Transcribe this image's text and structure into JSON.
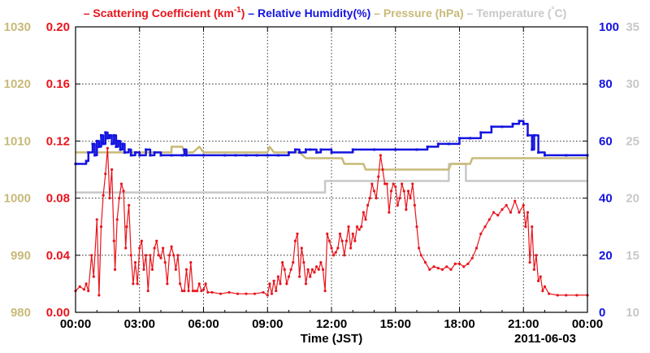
{
  "chart_data": {
    "type": "line",
    "xlabel": "Time (JST)",
    "date_label": "2011-06-03",
    "x_ticks": [
      "00:00",
      "03:00",
      "06:00",
      "09:00",
      "12:00",
      "15:00",
      "18:00",
      "21:00",
      "00:00"
    ],
    "grid": true,
    "legend_position": "top",
    "colors": {
      "scattering": "#e8141c",
      "humidity": "#1414e0",
      "pressure": "#c8ba78",
      "temperature": "#c8c8c8"
    },
    "legend": [
      {
        "key": "scattering",
        "dash": "–",
        "text_pre": "Scattering Coefficient (km",
        "sup": "-1",
        "text_post": ")"
      },
      {
        "key": "humidity",
        "dash": "–",
        "text_pre": "Relative Humidity(%)",
        "sup": "",
        "text_post": ""
      },
      {
        "key": "pressure",
        "dash": "–",
        "text_pre": "Pressure (hPa)",
        "sup": "",
        "text_post": ""
      },
      {
        "key": "temperature",
        "dash": "–",
        "text_pre": "Temperature (",
        "sup": "°",
        "text_post": "C)"
      }
    ],
    "axes": {
      "scattering": {
        "range": [
          0,
          0.2
        ],
        "ticks": [
          "0.00",
          "0.04",
          "0.08",
          "0.12",
          "0.16",
          "0.20"
        ]
      },
      "pressure": {
        "range": [
          980,
          1030
        ],
        "ticks": [
          "980",
          "990",
          "1000",
          "1010",
          "1020",
          "1030"
        ]
      },
      "humidity": {
        "range": [
          0,
          100
        ],
        "ticks": [
          "0",
          "20",
          "40",
          "60",
          "80",
          "100"
        ]
      },
      "temperature": {
        "range": [
          10,
          35
        ],
        "ticks": [
          "10",
          "15",
          "20",
          "25",
          "30",
          "35"
        ]
      }
    },
    "series": {
      "scattering": [
        [
          0.0,
          0.015
        ],
        [
          0.2,
          0.018
        ],
        [
          0.4,
          0.016
        ],
        [
          0.5,
          0.02
        ],
        [
          0.6,
          0.015
        ],
        [
          0.75,
          0.04
        ],
        [
          0.85,
          0.025
        ],
        [
          1.0,
          0.065
        ],
        [
          1.1,
          0.012
        ],
        [
          1.2,
          0.06
        ],
        [
          1.3,
          0.082
        ],
        [
          1.4,
          0.097
        ],
        [
          1.5,
          0.115
        ],
        [
          1.6,
          0.08
        ],
        [
          1.7,
          0.1
        ],
        [
          1.8,
          0.05
        ],
        [
          1.85,
          0.03
        ],
        [
          1.95,
          0.065
        ],
        [
          2.05,
          0.08
        ],
        [
          2.15,
          0.09
        ],
        [
          2.25,
          0.085
        ],
        [
          2.35,
          0.045
        ],
        [
          2.4,
          0.06
        ],
        [
          2.5,
          0.075
        ],
        [
          2.6,
          0.04
        ],
        [
          2.7,
          0.02
        ],
        [
          2.8,
          0.035
        ],
        [
          2.9,
          0.02
        ],
        [
          3.0,
          0.045
        ],
        [
          3.1,
          0.05
        ],
        [
          3.2,
          0.03
        ],
        [
          3.3,
          0.04
        ],
        [
          3.4,
          0.015
        ],
        [
          3.5,
          0.04
        ],
        [
          3.6,
          0.03
        ],
        [
          3.7,
          0.045
        ],
        [
          3.8,
          0.05
        ],
        [
          3.9,
          0.04
        ],
        [
          4.0,
          0.038
        ],
        [
          4.1,
          0.045
        ],
        [
          4.2,
          0.035
        ],
        [
          4.3,
          0.02
        ],
        [
          4.4,
          0.04
        ],
        [
          4.5,
          0.046
        ],
        [
          4.6,
          0.04
        ],
        [
          4.7,
          0.03
        ],
        [
          4.8,
          0.04
        ],
        [
          4.9,
          0.02
        ],
        [
          5.0,
          0.015
        ],
        [
          5.1,
          0.015
        ],
        [
          5.2,
          0.03
        ],
        [
          5.3,
          0.015
        ],
        [
          5.4,
          0.035
        ],
        [
          5.5,
          0.015
        ],
        [
          5.6,
          0.015
        ],
        [
          5.7,
          0.015
        ],
        [
          5.8,
          0.02
        ],
        [
          5.9,
          0.015
        ],
        [
          6.0,
          0.016
        ],
        [
          6.1,
          0.02
        ],
        [
          6.2,
          0.014
        ],
        [
          6.4,
          0.014
        ],
        [
          6.8,
          0.013
        ],
        [
          7.2,
          0.014
        ],
        [
          7.6,
          0.013
        ],
        [
          8.0,
          0.013
        ],
        [
          8.4,
          0.013
        ],
        [
          8.8,
          0.014
        ],
        [
          9.0,
          0.012
        ],
        [
          9.1,
          0.02
        ],
        [
          9.2,
          0.013
        ],
        [
          9.3,
          0.022
        ],
        [
          9.4,
          0.015
        ],
        [
          9.5,
          0.025
        ],
        [
          9.6,
          0.02
        ],
        [
          9.7,
          0.035
        ],
        [
          9.8,
          0.03
        ],
        [
          9.9,
          0.02
        ],
        [
          10.0,
          0.025
        ],
        [
          10.1,
          0.03
        ],
        [
          10.2,
          0.035
        ],
        [
          10.3,
          0.05
        ],
        [
          10.4,
          0.055
        ],
        [
          10.5,
          0.025
        ],
        [
          10.6,
          0.045
        ],
        [
          10.7,
          0.035
        ],
        [
          10.8,
          0.02
        ],
        [
          10.9,
          0.03
        ],
        [
          11.0,
          0.025
        ],
        [
          11.1,
          0.03
        ],
        [
          11.2,
          0.028
        ],
        [
          11.3,
          0.032
        ],
        [
          11.4,
          0.03
        ],
        [
          11.5,
          0.035
        ],
        [
          11.6,
          0.03
        ],
        [
          11.7,
          0.015
        ],
        [
          11.8,
          0.055
        ],
        [
          11.9,
          0.05
        ],
        [
          12.0,
          0.045
        ],
        [
          12.1,
          0.04
        ],
        [
          12.2,
          0.042
        ],
        [
          12.3,
          0.045
        ],
        [
          12.4,
          0.055
        ],
        [
          12.5,
          0.05
        ],
        [
          12.6,
          0.04
        ],
        [
          12.7,
          0.05
        ],
        [
          12.8,
          0.06
        ],
        [
          12.9,
          0.045
        ],
        [
          13.0,
          0.055
        ],
        [
          13.1,
          0.05
        ],
        [
          13.2,
          0.06
        ],
        [
          13.3,
          0.058
        ],
        [
          13.4,
          0.06
        ],
        [
          13.5,
          0.07
        ],
        [
          13.6,
          0.065
        ],
        [
          13.7,
          0.075
        ],
        [
          13.8,
          0.08
        ],
        [
          13.9,
          0.09
        ],
        [
          14.0,
          0.085
        ],
        [
          14.1,
          0.08
        ],
        [
          14.2,
          0.095
        ],
        [
          14.3,
          0.11
        ],
        [
          14.4,
          0.1
        ],
        [
          14.5,
          0.09
        ],
        [
          14.6,
          0.09
        ],
        [
          14.7,
          0.07
        ],
        [
          14.8,
          0.085
        ],
        [
          14.9,
          0.09
        ],
        [
          15.0,
          0.088
        ],
        [
          15.1,
          0.075
        ],
        [
          15.2,
          0.08
        ],
        [
          15.3,
          0.09
        ],
        [
          15.4,
          0.085
        ],
        [
          15.5,
          0.072
        ],
        [
          15.6,
          0.085
        ],
        [
          15.7,
          0.08
        ],
        [
          15.8,
          0.09
        ],
        [
          15.9,
          0.075
        ],
        [
          16.0,
          0.06
        ],
        [
          16.1,
          0.045
        ],
        [
          16.2,
          0.04
        ],
        [
          16.4,
          0.035
        ],
        [
          16.6,
          0.03
        ],
        [
          16.8,
          0.032
        ],
        [
          17.0,
          0.031
        ],
        [
          17.2,
          0.03
        ],
        [
          17.4,
          0.032
        ],
        [
          17.6,
          0.03
        ],
        [
          17.8,
          0.034
        ],
        [
          18.0,
          0.034
        ],
        [
          18.2,
          0.032
        ],
        [
          18.4,
          0.034
        ],
        [
          18.6,
          0.038
        ],
        [
          18.8,
          0.045
        ],
        [
          19.0,
          0.055
        ],
        [
          19.2,
          0.06
        ],
        [
          19.4,
          0.065
        ],
        [
          19.6,
          0.07
        ],
        [
          19.8,
          0.068
        ],
        [
          20.0,
          0.072
        ],
        [
          20.2,
          0.075
        ],
        [
          20.4,
          0.07
        ],
        [
          20.6,
          0.078
        ],
        [
          20.8,
          0.07
        ],
        [
          21.0,
          0.075
        ],
        [
          21.1,
          0.06
        ],
        [
          21.2,
          0.07
        ],
        [
          21.3,
          0.035
        ],
        [
          21.4,
          0.06
        ],
        [
          21.5,
          0.03
        ],
        [
          21.6,
          0.04
        ],
        [
          21.7,
          0.022
        ],
        [
          21.8,
          0.025
        ],
        [
          21.9,
          0.015
        ],
        [
          22.0,
          0.018
        ],
        [
          22.2,
          0.013
        ],
        [
          22.6,
          0.012
        ],
        [
          23.0,
          0.012
        ],
        [
          23.5,
          0.012
        ],
        [
          24.0,
          0.012
        ]
      ],
      "humidity": [
        [
          0.0,
          52
        ],
        [
          0.5,
          53
        ],
        [
          0.6,
          56
        ],
        [
          0.8,
          59
        ],
        [
          0.9,
          55
        ],
        [
          1.0,
          60
        ],
        [
          1.1,
          58
        ],
        [
          1.2,
          62
        ],
        [
          1.3,
          59
        ],
        [
          1.4,
          63
        ],
        [
          1.5,
          61
        ],
        [
          1.6,
          62
        ],
        [
          1.7,
          59
        ],
        [
          1.8,
          62
        ],
        [
          1.9,
          58
        ],
        [
          2.0,
          60
        ],
        [
          2.1,
          57
        ],
        [
          2.2,
          59
        ],
        [
          2.3,
          56
        ],
        [
          2.5,
          57
        ],
        [
          2.6,
          55
        ],
        [
          2.8,
          56
        ],
        [
          3.0,
          55
        ],
        [
          3.3,
          57
        ],
        [
          3.5,
          55
        ],
        [
          3.7,
          56
        ],
        [
          4.0,
          55
        ],
        [
          4.5,
          55
        ],
        [
          5.0,
          55
        ],
        [
          5.1,
          57
        ],
        [
          5.2,
          55
        ],
        [
          6.0,
          55
        ],
        [
          7.0,
          55
        ],
        [
          7.5,
          55
        ],
        [
          8.0,
          55
        ],
        [
          8.5,
          55
        ],
        [
          9.0,
          55
        ],
        [
          9.5,
          55
        ],
        [
          10.0,
          56
        ],
        [
          10.3,
          57
        ],
        [
          10.5,
          56
        ],
        [
          10.8,
          57
        ],
        [
          11.0,
          57
        ],
        [
          11.3,
          56
        ],
        [
          11.5,
          57
        ],
        [
          12.0,
          56
        ],
        [
          13.0,
          57
        ],
        [
          14.0,
          57
        ],
        [
          15.0,
          57
        ],
        [
          16.0,
          57
        ],
        [
          16.5,
          58
        ],
        [
          17.0,
          59
        ],
        [
          17.5,
          59
        ],
        [
          18.0,
          61
        ],
        [
          18.5,
          61
        ],
        [
          19.0,
          63
        ],
        [
          19.5,
          65
        ],
        [
          20.0,
          65
        ],
        [
          20.5,
          66
        ],
        [
          20.8,
          67
        ],
        [
          21.0,
          66
        ],
        [
          21.2,
          62
        ],
        [
          21.4,
          57
        ],
        [
          21.5,
          62
        ],
        [
          21.7,
          56
        ],
        [
          22.0,
          55
        ],
        [
          23.0,
          55
        ],
        [
          24.0,
          55
        ]
      ],
      "pressure": [
        [
          0.0,
          1008
        ],
        [
          4.5,
          1008
        ],
        [
          4.5,
          1009
        ],
        [
          5.0,
          1009
        ],
        [
          5.1,
          1008
        ],
        [
          5.5,
          1008
        ],
        [
          5.8,
          1009
        ],
        [
          6.0,
          1008
        ],
        [
          9.0,
          1008
        ],
        [
          9.1,
          1009
        ],
        [
          9.3,
          1008
        ],
        [
          10.5,
          1008
        ],
        [
          10.8,
          1007
        ],
        [
          12.5,
          1007
        ],
        [
          12.6,
          1006
        ],
        [
          13.5,
          1006
        ],
        [
          13.6,
          1005
        ],
        [
          17.5,
          1005
        ],
        [
          17.6,
          1006
        ],
        [
          18.5,
          1006
        ],
        [
          18.6,
          1007
        ],
        [
          24.0,
          1007
        ]
      ],
      "temperature": [
        [
          0.0,
          20.5
        ],
        [
          11.7,
          20.5
        ],
        [
          11.7,
          21.5
        ],
        [
          17.5,
          21.5
        ],
        [
          17.5,
          23
        ],
        [
          18.3,
          23
        ],
        [
          18.3,
          21.5
        ],
        [
          24.0,
          21.5
        ]
      ]
    }
  }
}
